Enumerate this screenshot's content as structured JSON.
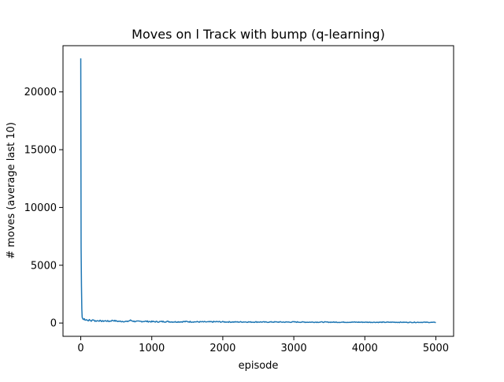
{
  "chart_data": {
    "type": "line",
    "title": "Moves on l Track with bump (q-learning)",
    "xlabel": "episode",
    "ylabel": "# moves (average last 10)",
    "xlim": [
      -250,
      5250
    ],
    "ylim": [
      -1150,
      24000
    ],
    "x_ticks": [
      0,
      1000,
      2000,
      3000,
      4000,
      5000
    ],
    "x_tick_labels": [
      "0",
      "1000",
      "2000",
      "3000",
      "4000",
      "5000"
    ],
    "y_ticks": [
      0,
      5000,
      10000,
      15000,
      20000
    ],
    "y_tick_labels": [
      "0",
      "5000",
      "10000",
      "15000",
      "20000"
    ],
    "grid": false,
    "series": [
      {
        "color": "#1f77b4",
        "x": [
          0,
          5,
          10,
          15,
          20,
          30,
          40,
          50,
          60,
          80,
          100,
          120,
          150,
          180,
          200,
          250,
          300,
          350,
          400,
          450,
          500,
          550,
          600,
          650,
          700,
          750,
          800,
          900,
          1000,
          1100,
          1200,
          1300,
          1400,
          1500,
          1600,
          1700,
          1800,
          1900,
          2000,
          2100,
          2200,
          2300,
          2400,
          2500,
          2600,
          2700,
          2800,
          2900,
          3000,
          3200,
          3400,
          3600,
          3800,
          4000,
          4200,
          4400,
          4600,
          4800,
          5000
        ],
        "y": [
          22900,
          6500,
          3200,
          1200,
          500,
          350,
          300,
          380,
          250,
          320,
          200,
          260,
          180,
          300,
          170,
          210,
          160,
          190,
          150,
          230,
          170,
          140,
          150,
          120,
          230,
          150,
          130,
          150,
          120,
          110,
          130,
          100,
          110,
          120,
          105,
          100,
          95,
          110,
          100,
          95,
          90,
          100,
          85,
          95,
          80,
          90,
          85,
          80,
          90,
          75,
          80,
          70,
          75,
          70,
          65,
          70,
          60,
          65,
          55
        ]
      }
    ]
  }
}
